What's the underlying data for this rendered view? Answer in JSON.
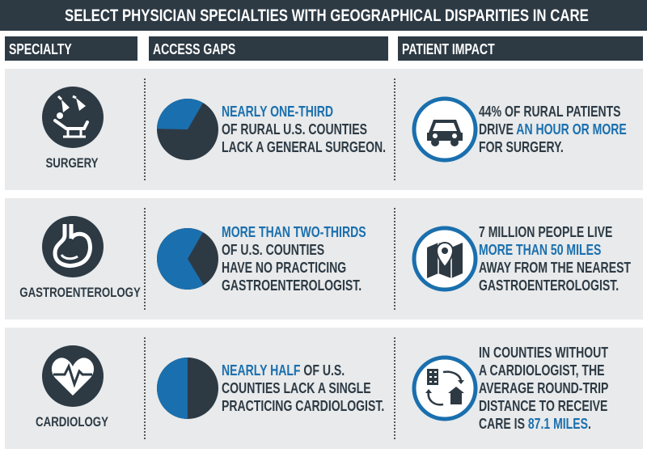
{
  "title": "SELECT PHYSICIAN SPECIALTIES WITH GEOGRAPHICAL DISPARITIES IN CARE",
  "headers": [
    "SPECIALTY",
    "ACCESS GAPS",
    "PATIENT IMPACT"
  ],
  "rows": [
    {
      "specialty": "SURGERY",
      "pie_share": 33,
      "access": [
        [
          {
            "text": "NEARLY ONE-THIRD",
            "blue": true
          }
        ],
        [
          {
            "text": "OF RURAL U.S. COUNTIES",
            "blue": false
          }
        ],
        [
          {
            "text": "LACK A GENERAL SURGEON.",
            "blue": false
          }
        ]
      ],
      "impact": [
        [
          {
            "text": "44% OF RURAL PATIENTS",
            "blue": false
          }
        ],
        [
          {
            "text": "DRIVE",
            "blue": false
          },
          {
            "text": "AN HOUR OR MORE",
            "blue": true
          }
        ],
        [
          {
            "text": "FOR SURGERY.",
            "blue": false
          }
        ]
      ]
    },
    {
      "specialty": "GASTROENTEROLOGY",
      "pie_share": 67,
      "access": [
        [
          {
            "text": "MORE THAN TWO-THIRDS",
            "blue": true
          }
        ],
        [
          {
            "text": "OF U.S. COUNTIES",
            "blue": false
          }
        ],
        [
          {
            "text": "HAVE NO PRACTICING",
            "blue": false
          }
        ],
        [
          {
            "text": "GASTROENTEROLOGIST.",
            "blue": false
          }
        ]
      ],
      "impact": [
        [
          {
            "text": "7 MILLION PEOPLE LIVE",
            "blue": false
          }
        ],
        [
          {
            "text": "MORE THAN 50 MILES",
            "blue": true
          }
        ],
        [
          {
            "text": "AWAY FROM THE NEAREST",
            "blue": false
          }
        ],
        [
          {
            "text": "GASTROENTEROLOGIST.",
            "blue": false
          }
        ]
      ]
    },
    {
      "specialty": "CARDIOLOGY",
      "pie_share": 50,
      "access": [
        [
          {
            "text": "NEARLY HALF",
            "blue": true
          },
          {
            "text": "OF U.S.",
            "blue": false
          }
        ],
        [
          {
            "text": "COUNTIES LACK A SINGLE",
            "blue": false
          }
        ],
        [
          {
            "text": "PRACTICING CARDIOLOGIST.",
            "blue": false
          }
        ]
      ],
      "impact": [
        [
          {
            "text": "IN COUNTIES WITHOUT",
            "blue": false
          }
        ],
        [
          {
            "text": "A CARDIOLOGIST, THE",
            "blue": false
          }
        ],
        [
          {
            "text": "AVERAGE ROUND-TRIP",
            "blue": false
          }
        ],
        [
          {
            "text": "DISTANCE TO RECEIVE",
            "blue": false
          }
        ],
        [
          {
            "text": "CARE IS",
            "blue": false
          },
          {
            "text": "87.1 MILES",
            "blue": true
          },
          {
            "text": ".",
            "blue": false
          }
        ]
      ]
    }
  ]
}
